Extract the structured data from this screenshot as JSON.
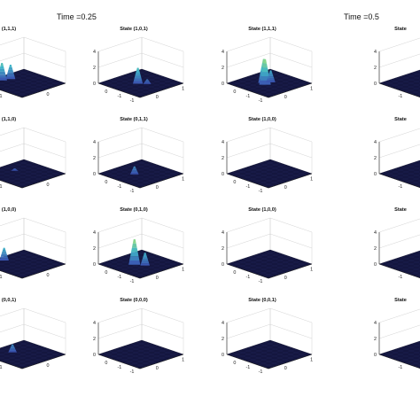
{
  "figure": {
    "time_labels": [
      {
        "text": "Time =0.25"
      },
      {
        "text": "Time =0.5"
      }
    ]
  },
  "colors": {
    "surface_floor": "#14163f",
    "peak_low": "#3a4fb0",
    "peak_mid": "#3fb6c8",
    "peak_high": "#9fe07a"
  },
  "chart_data": {
    "type": "surface3d",
    "zlim": [
      0,
      4
    ],
    "z_ticks": [
      "4",
      "2",
      "0"
    ],
    "panels": [
      {
        "row": 0,
        "col": 0,
        "title": "(1,1,1)",
        "x_ticks": [
          "1"
        ],
        "y_ticks": [
          "0"
        ],
        "peaks": [
          {
            "u": 0.15,
            "v": 0.35,
            "h": 2.2
          },
          {
            "u": 0.2,
            "v": 0.5,
            "h": 1.8
          }
        ]
      },
      {
        "row": 0,
        "col": 1,
        "title": "State (1,0,1)",
        "x_ticks": [
          "0",
          "-1",
          "-1"
        ],
        "y_ticks": [
          "0",
          "1"
        ],
        "peaks": [
          {
            "u": 0.48,
            "v": 0.45,
            "h": 2.0
          },
          {
            "u": 0.6,
            "v": 0.55,
            "h": 0.6
          }
        ]
      },
      {
        "row": 0,
        "col": 2,
        "title": "State (1,1,1)",
        "x_ticks": [
          "0",
          "-1",
          "-1"
        ],
        "y_ticks": [
          "0",
          "1"
        ],
        "peaks": [
          {
            "u": 0.42,
            "v": 0.45,
            "h": 3.0
          },
          {
            "u": 0.5,
            "v": 0.4,
            "h": 3.2
          },
          {
            "u": 0.48,
            "v": 0.55,
            "h": 1.5
          }
        ]
      },
      {
        "row": 0,
        "col": 3,
        "title": "State",
        "x_ticks": [
          "-1"
        ],
        "y_ticks": [],
        "peaks": []
      },
      {
        "row": 1,
        "col": 0,
        "title": "(1,1,0)",
        "x_ticks": [
          "1"
        ],
        "y_ticks": [
          "0"
        ],
        "peaks": [
          {
            "u": 0.3,
            "v": 0.5,
            "h": 0.3
          }
        ]
      },
      {
        "row": 1,
        "col": 1,
        "title": "State (0,1,1)",
        "x_ticks": [
          "0",
          "-1",
          "-1"
        ],
        "y_ticks": [
          "0",
          "1"
        ],
        "peaks": [
          {
            "u": 0.45,
            "v": 0.4,
            "h": 1.0
          }
        ]
      },
      {
        "row": 1,
        "col": 2,
        "title": "State (1,0,0)",
        "x_ticks": [
          "0",
          "-1",
          "-1"
        ],
        "y_ticks": [
          "0",
          "1"
        ],
        "peaks": []
      },
      {
        "row": 1,
        "col": 3,
        "title": "State",
        "x_ticks": [
          "-1"
        ],
        "y_ticks": [],
        "peaks": []
      },
      {
        "row": 2,
        "col": 0,
        "title": "(1,0,0)",
        "x_ticks": [
          "1"
        ],
        "y_ticks": [
          "0"
        ],
        "peaks": [
          {
            "u": 0.15,
            "v": 0.4,
            "h": 1.6
          }
        ]
      },
      {
        "row": 2,
        "col": 1,
        "title": "State (0,1,0)",
        "x_ticks": [
          "0",
          "-1",
          "-1"
        ],
        "y_ticks": [
          "0",
          "1"
        ],
        "peaks": [
          {
            "u": 0.45,
            "v": 0.4,
            "h": 3.2
          },
          {
            "u": 0.6,
            "v": 0.5,
            "h": 1.6
          }
        ]
      },
      {
        "row": 2,
        "col": 2,
        "title": "State (1,0,0)",
        "x_ticks": [
          "0",
          "-1",
          "-1"
        ],
        "y_ticks": [
          "0",
          "1"
        ],
        "peaks": []
      },
      {
        "row": 2,
        "col": 3,
        "title": "State",
        "x_ticks": [
          "-1"
        ],
        "y_ticks": [],
        "peaks": []
      },
      {
        "row": 3,
        "col": 0,
        "title": "(0,0,1)",
        "x_ticks": [
          "1"
        ],
        "y_ticks": [
          "0"
        ],
        "peaks": [
          {
            "u": 0.3,
            "v": 0.45,
            "h": 1.0
          }
        ]
      },
      {
        "row": 3,
        "col": 1,
        "title": "State (0,0,0)",
        "x_ticks": [
          "0",
          "-1",
          "-1"
        ],
        "y_ticks": [
          "0",
          "1"
        ],
        "peaks": []
      },
      {
        "row": 3,
        "col": 2,
        "title": "State (0,0,1)",
        "x_ticks": [
          "0",
          "-1",
          "-1"
        ],
        "y_ticks": [
          "0",
          "1"
        ],
        "peaks": []
      },
      {
        "row": 3,
        "col": 3,
        "title": "State",
        "x_ticks": [
          "-1"
        ],
        "y_ticks": [],
        "peaks": []
      }
    ]
  }
}
